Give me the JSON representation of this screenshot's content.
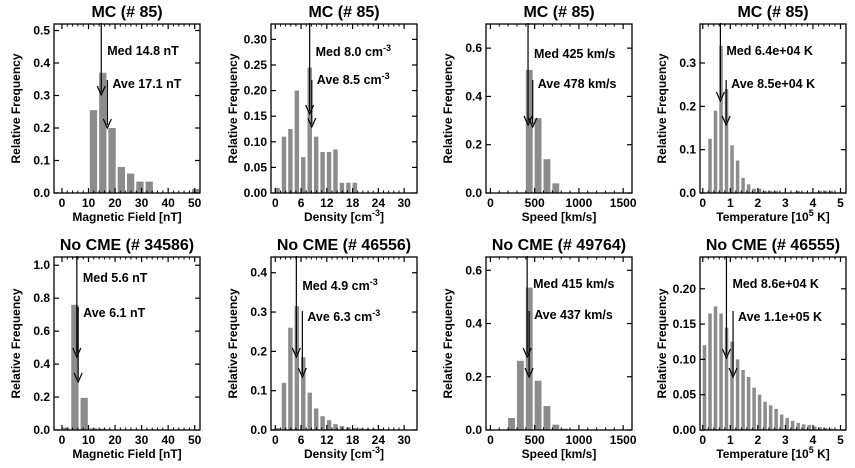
{
  "style": {
    "bar_color": "#8c8c8c",
    "axis_color": "#000000",
    "background": "#ffffff"
  },
  "ylabel": "Relative Frequency",
  "chart_data": [
    {
      "type": "bar",
      "title": "MC (# 85)",
      "xlabel": "Magnetic Field [nT]",
      "xlim": [
        -3,
        52
      ],
      "xticks": [
        0,
        10,
        20,
        30,
        40,
        50
      ],
      "ylim": [
        0,
        0.52
      ],
      "yticks": [
        0.0,
        0.1,
        0.2,
        0.3,
        0.4,
        0.5
      ],
      "bin_width": 3.5,
      "bins": [
        {
          "x": 0,
          "y": 0
        },
        {
          "x": 3.5,
          "y": 0
        },
        {
          "x": 7,
          "y": 0
        },
        {
          "x": 10.5,
          "y": 0.255
        },
        {
          "x": 14,
          "y": 0.37
        },
        {
          "x": 17.5,
          "y": 0.2
        },
        {
          "x": 21,
          "y": 0.08
        },
        {
          "x": 24.5,
          "y": 0.06
        },
        {
          "x": 28,
          "y": 0.035
        },
        {
          "x": 31.5,
          "y": 0.035
        },
        {
          "x": 35,
          "y": 0
        },
        {
          "x": 38.5,
          "y": 0
        },
        {
          "x": 42,
          "y": 0
        },
        {
          "x": 45.5,
          "y": 0
        },
        {
          "x": 49,
          "y": 0.012
        }
      ],
      "median": {
        "x": 14.8,
        "label": "Med 14.8 nT"
      },
      "average": {
        "x": 17.1,
        "label": "Ave 17.1 nT"
      }
    },
    {
      "type": "bar",
      "title": "MC (# 85)",
      "xlabel": "Density [cm-3]",
      "xlabel_main": "Density [cm",
      "xlabel_sup": "-3",
      "xlabel_tail": "]",
      "xlim": [
        -1,
        33
      ],
      "xticks": [
        0,
        6,
        12,
        18,
        24,
        30
      ],
      "ylim": [
        0,
        0.33
      ],
      "yticks": [
        0.0,
        0.05,
        0.1,
        0.15,
        0.2,
        0.25,
        0.3
      ],
      "bin_width": 1.5,
      "bins": [
        {
          "x": 0,
          "y": 0.01
        },
        {
          "x": 1.5,
          "y": 0.11
        },
        {
          "x": 3,
          "y": 0.125
        },
        {
          "x": 4.5,
          "y": 0.2
        },
        {
          "x": 6,
          "y": 0.07
        },
        {
          "x": 7.5,
          "y": 0.245
        },
        {
          "x": 9,
          "y": 0.11
        },
        {
          "x": 10.5,
          "y": 0.08
        },
        {
          "x": 12,
          "y": 0.08
        },
        {
          "x": 13.5,
          "y": 0.085
        },
        {
          "x": 15,
          "y": 0.02
        },
        {
          "x": 16.5,
          "y": 0.02
        },
        {
          "x": 18,
          "y": 0.02
        },
        {
          "x": 19.5,
          "y": 0
        },
        {
          "x": 21,
          "y": 0
        },
        {
          "x": 22.5,
          "y": 0
        },
        {
          "x": 24,
          "y": 0
        },
        {
          "x": 25.5,
          "y": 0
        },
        {
          "x": 27,
          "y": 0
        },
        {
          "x": 28.5,
          "y": 0
        },
        {
          "x": 30,
          "y": 0
        }
      ],
      "median": {
        "x": 8.0,
        "label": "Med 8.0 cm",
        "sup": "-3"
      },
      "average": {
        "x": 8.5,
        "label": "Ave 8.5 cm",
        "sup": "-3"
      }
    },
    {
      "type": "bar",
      "title": "MC (# 85)",
      "xlabel": "Speed [km/s]",
      "xlim": [
        -50,
        1600
      ],
      "xticks": [
        0,
        500,
        1000,
        1500
      ],
      "ylim": [
        0,
        0.7
      ],
      "yticks": [
        0.0,
        0.2,
        0.4,
        0.6
      ],
      "bin_width": 100,
      "bins": [
        {
          "x": 300,
          "y": 0
        },
        {
          "x": 400,
          "y": 0.51
        },
        {
          "x": 500,
          "y": 0.31
        },
        {
          "x": 600,
          "y": 0.14
        },
        {
          "x": 700,
          "y": 0.04
        }
      ],
      "median": {
        "x": 425,
        "label": "Med 425 km/s"
      },
      "average": {
        "x": 478,
        "label": "Ave 478 km/s"
      }
    },
    {
      "type": "bar",
      "title": "MC (# 85)",
      "xlabel": "Temperature [10 5 K]",
      "xlabel_main": "Temperature [10",
      "xlabel_sup": "5",
      "xlabel_tail": " K]",
      "xlim": [
        -0.1,
        5.2
      ],
      "xticks": [
        0,
        1,
        2,
        3,
        4,
        5
      ],
      "ylim": [
        0,
        0.39
      ],
      "yticks": [
        0.0,
        0.1,
        0.2,
        0.3
      ],
      "bin_width": 0.2,
      "bins": [
        {
          "x": 0.2,
          "y": 0.125
        },
        {
          "x": 0.4,
          "y": 0.19
        },
        {
          "x": 0.6,
          "y": 0.34
        },
        {
          "x": 0.8,
          "y": 0.24
        },
        {
          "x": 1.0,
          "y": 0.11
        },
        {
          "x": 1.2,
          "y": 0.075
        },
        {
          "x": 1.4,
          "y": 0.035
        },
        {
          "x": 1.6,
          "y": 0.02
        },
        {
          "x": 1.8,
          "y": 0.01
        },
        {
          "x": 2.0,
          "y": 0.01
        },
        {
          "x": 2.2,
          "y": 0.005
        },
        {
          "x": 2.4,
          "y": 0.005
        },
        {
          "x": 2.6,
          "y": 0.005
        },
        {
          "x": 3.4,
          "y": 0.005
        },
        {
          "x": 4.2,
          "y": 0.005
        },
        {
          "x": 4.4,
          "y": 0.005
        },
        {
          "x": 4.6,
          "y": 0.005
        }
      ],
      "median": {
        "x": 0.64,
        "label": "Med 6.4e+04 K"
      },
      "average": {
        "x": 0.85,
        "label": "Ave 8.5e+04 K"
      }
    },
    {
      "type": "bar",
      "title": "No CME (# 34586)",
      "xlabel": "Magnetic Field [nT]",
      "xlim": [
        -3,
        52
      ],
      "xticks": [
        0,
        10,
        20,
        30,
        40,
        50
      ],
      "ylim": [
        0,
        1.05
      ],
      "yticks": [
        0.0,
        0.2,
        0.4,
        0.6,
        0.8,
        1.0
      ],
      "bin_width": 3.5,
      "bins": [
        {
          "x": 0,
          "y": 0.015
        },
        {
          "x": 3.5,
          "y": 0.76
        },
        {
          "x": 7,
          "y": 0.195
        },
        {
          "x": 10.5,
          "y": 0.01
        },
        {
          "x": 14,
          "y": 0.005
        }
      ],
      "median": {
        "x": 5.6,
        "label": "Med 5.6 nT"
      },
      "average": {
        "x": 6.1,
        "label": "Ave 6.1 nT"
      }
    },
    {
      "type": "bar",
      "title": "No CME (# 46556)",
      "xlabel": "Density [cm-3]",
      "xlabel_main": "Density [cm",
      "xlabel_sup": "-3",
      "xlabel_tail": "]",
      "xlim": [
        -1,
        33
      ],
      "xticks": [
        0,
        6,
        12,
        18,
        24,
        30
      ],
      "ylim": [
        0,
        0.44
      ],
      "yticks": [
        0.0,
        0.1,
        0.2,
        0.3,
        0.4
      ],
      "bin_width": 1.5,
      "bins": [
        {
          "x": 0,
          "y": 0.005
        },
        {
          "x": 1.5,
          "y": 0.12
        },
        {
          "x": 3,
          "y": 0.26
        },
        {
          "x": 4.5,
          "y": 0.315
        },
        {
          "x": 6,
          "y": 0.185
        },
        {
          "x": 7.5,
          "y": 0.095
        },
        {
          "x": 9,
          "y": 0.055
        },
        {
          "x": 10.5,
          "y": 0.035
        },
        {
          "x": 12,
          "y": 0.025
        },
        {
          "x": 13.5,
          "y": 0.015
        },
        {
          "x": 15,
          "y": 0.01
        },
        {
          "x": 16.5,
          "y": 0.007
        },
        {
          "x": 18,
          "y": 0.005
        },
        {
          "x": 19.5,
          "y": 0.004
        },
        {
          "x": 21,
          "y": 0.003
        },
        {
          "x": 22.5,
          "y": 0.002
        },
        {
          "x": 24,
          "y": 0.002
        }
      ],
      "median": {
        "x": 4.9,
        "label": "Med 4.9 cm",
        "sup": "-3"
      },
      "average": {
        "x": 6.3,
        "label": "Ave 6.3 cm",
        "sup": "-3"
      }
    },
    {
      "type": "bar",
      "title": "No CME (# 49764)",
      "xlabel": "Speed [km/s]",
      "xlim": [
        -50,
        1600
      ],
      "xticks": [
        0,
        500,
        1000,
        1500
      ],
      "ylim": [
        0,
        0.65
      ],
      "yticks": [
        0.0,
        0.2,
        0.4,
        0.6
      ],
      "bin_width": 100,
      "bins": [
        {
          "x": 200,
          "y": 0.045
        },
        {
          "x": 300,
          "y": 0.26
        },
        {
          "x": 400,
          "y": 0.535
        },
        {
          "x": 500,
          "y": 0.185
        },
        {
          "x": 600,
          "y": 0.09
        },
        {
          "x": 700,
          "y": 0.02
        },
        {
          "x": 800,
          "y": 0.005
        }
      ],
      "median": {
        "x": 415,
        "label": "Med 415 km/s"
      },
      "average": {
        "x": 437,
        "label": "Ave 437 km/s"
      }
    },
    {
      "type": "bar",
      "title": "No CME (# 46555)",
      "xlabel": "Temperature [10 5 K]",
      "xlabel_main": "Temperature [10",
      "xlabel_sup": "5",
      "xlabel_tail": " K]",
      "xlim": [
        -0.1,
        5.2
      ],
      "xticks": [
        0,
        1,
        2,
        3,
        4,
        5
      ],
      "ylim": [
        0,
        0.245
      ],
      "yticks": [
        0.0,
        0.05,
        0.1,
        0.15,
        0.2
      ],
      "bin_width": 0.2,
      "bins": [
        {
          "x": 0,
          "y": 0.12
        },
        {
          "x": 0.2,
          "y": 0.165
        },
        {
          "x": 0.4,
          "y": 0.175
        },
        {
          "x": 0.6,
          "y": 0.165
        },
        {
          "x": 0.8,
          "y": 0.145
        },
        {
          "x": 1.0,
          "y": 0.125
        },
        {
          "x": 1.2,
          "y": 0.1
        },
        {
          "x": 1.4,
          "y": 0.085
        },
        {
          "x": 1.6,
          "y": 0.075
        },
        {
          "x": 1.8,
          "y": 0.06
        },
        {
          "x": 2.0,
          "y": 0.05
        },
        {
          "x": 2.2,
          "y": 0.04
        },
        {
          "x": 2.4,
          "y": 0.035
        },
        {
          "x": 2.6,
          "y": 0.03
        },
        {
          "x": 2.8,
          "y": 0.022
        },
        {
          "x": 3.0,
          "y": 0.017
        },
        {
          "x": 3.2,
          "y": 0.013
        },
        {
          "x": 3.4,
          "y": 0.01
        },
        {
          "x": 3.6,
          "y": 0.008
        },
        {
          "x": 3.8,
          "y": 0.007
        },
        {
          "x": 4.0,
          "y": 0.005
        },
        {
          "x": 4.2,
          "y": 0.004
        },
        {
          "x": 4.4,
          "y": 0.003
        },
        {
          "x": 4.6,
          "y": 0.002
        }
      ],
      "median": {
        "x": 0.86,
        "label": "Med 8.6e+04 K"
      },
      "average": {
        "x": 1.1,
        "label": "Ave 1.1e+05 K"
      }
    }
  ]
}
